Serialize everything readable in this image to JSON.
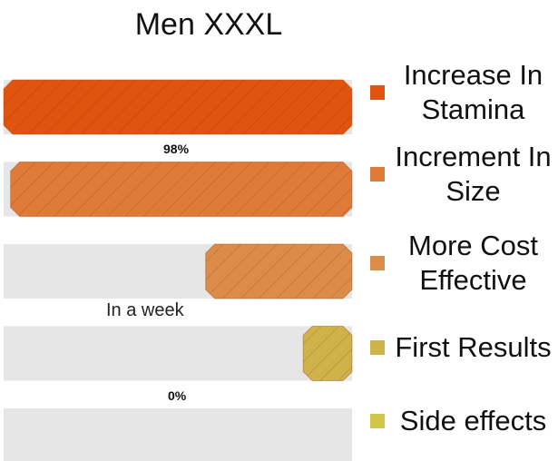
{
  "chart_data": {
    "type": "bar",
    "orientation": "horizontal",
    "title": "Men XXXL",
    "xlim": [
      0,
      100
    ],
    "grid": false,
    "legend_position": "right",
    "series": [
      {
        "name": "Increase In Stamina",
        "value": 100,
        "color": "#e0540f"
      },
      {
        "name": "Increment In Size",
        "value": 98,
        "color": "#e07a38"
      },
      {
        "name": "More Cost Effective",
        "value": 42,
        "color": "#da8c48"
      },
      {
        "name": "First Results",
        "value": 14,
        "color": "#cfb24a"
      },
      {
        "name": "Side effects",
        "value": 0,
        "color": "#d2c64a"
      }
    ],
    "data_labels": [
      "98%",
      "0%"
    ],
    "annotations": [
      "In a week"
    ]
  }
}
